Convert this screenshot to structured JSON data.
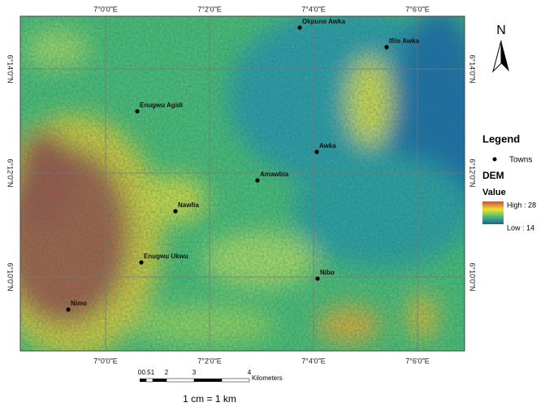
{
  "map": {
    "graticule": {
      "longitudes": [
        "7°0'0\"E",
        "7°2'0\"E",
        "7°4'0\"E",
        "7°6'0\"E"
      ],
      "latitudes": [
        "6°14'0\"N",
        "6°12'0\"N",
        "6°10'0\"N"
      ]
    },
    "towns": [
      "Okpuno Awka",
      "Ifite Awka",
      "Enugwu Agidi",
      "Awka",
      "Amawbia",
      "Nawfia",
      "Enugwu Ukwu",
      "Nibo",
      "Nimo"
    ],
    "north": "N",
    "legend": {
      "title": "Legend",
      "towns": "Towns",
      "layer": "DEM",
      "field": "Value",
      "high": "High : 28",
      "low": "Low : 14"
    },
    "scale_bar": {
      "labels": [
        "0",
        "0.5",
        "1",
        "2",
        "3",
        "4"
      ],
      "unit": "Kilometers",
      "ratio": "1 cm = 1 km"
    }
  }
}
